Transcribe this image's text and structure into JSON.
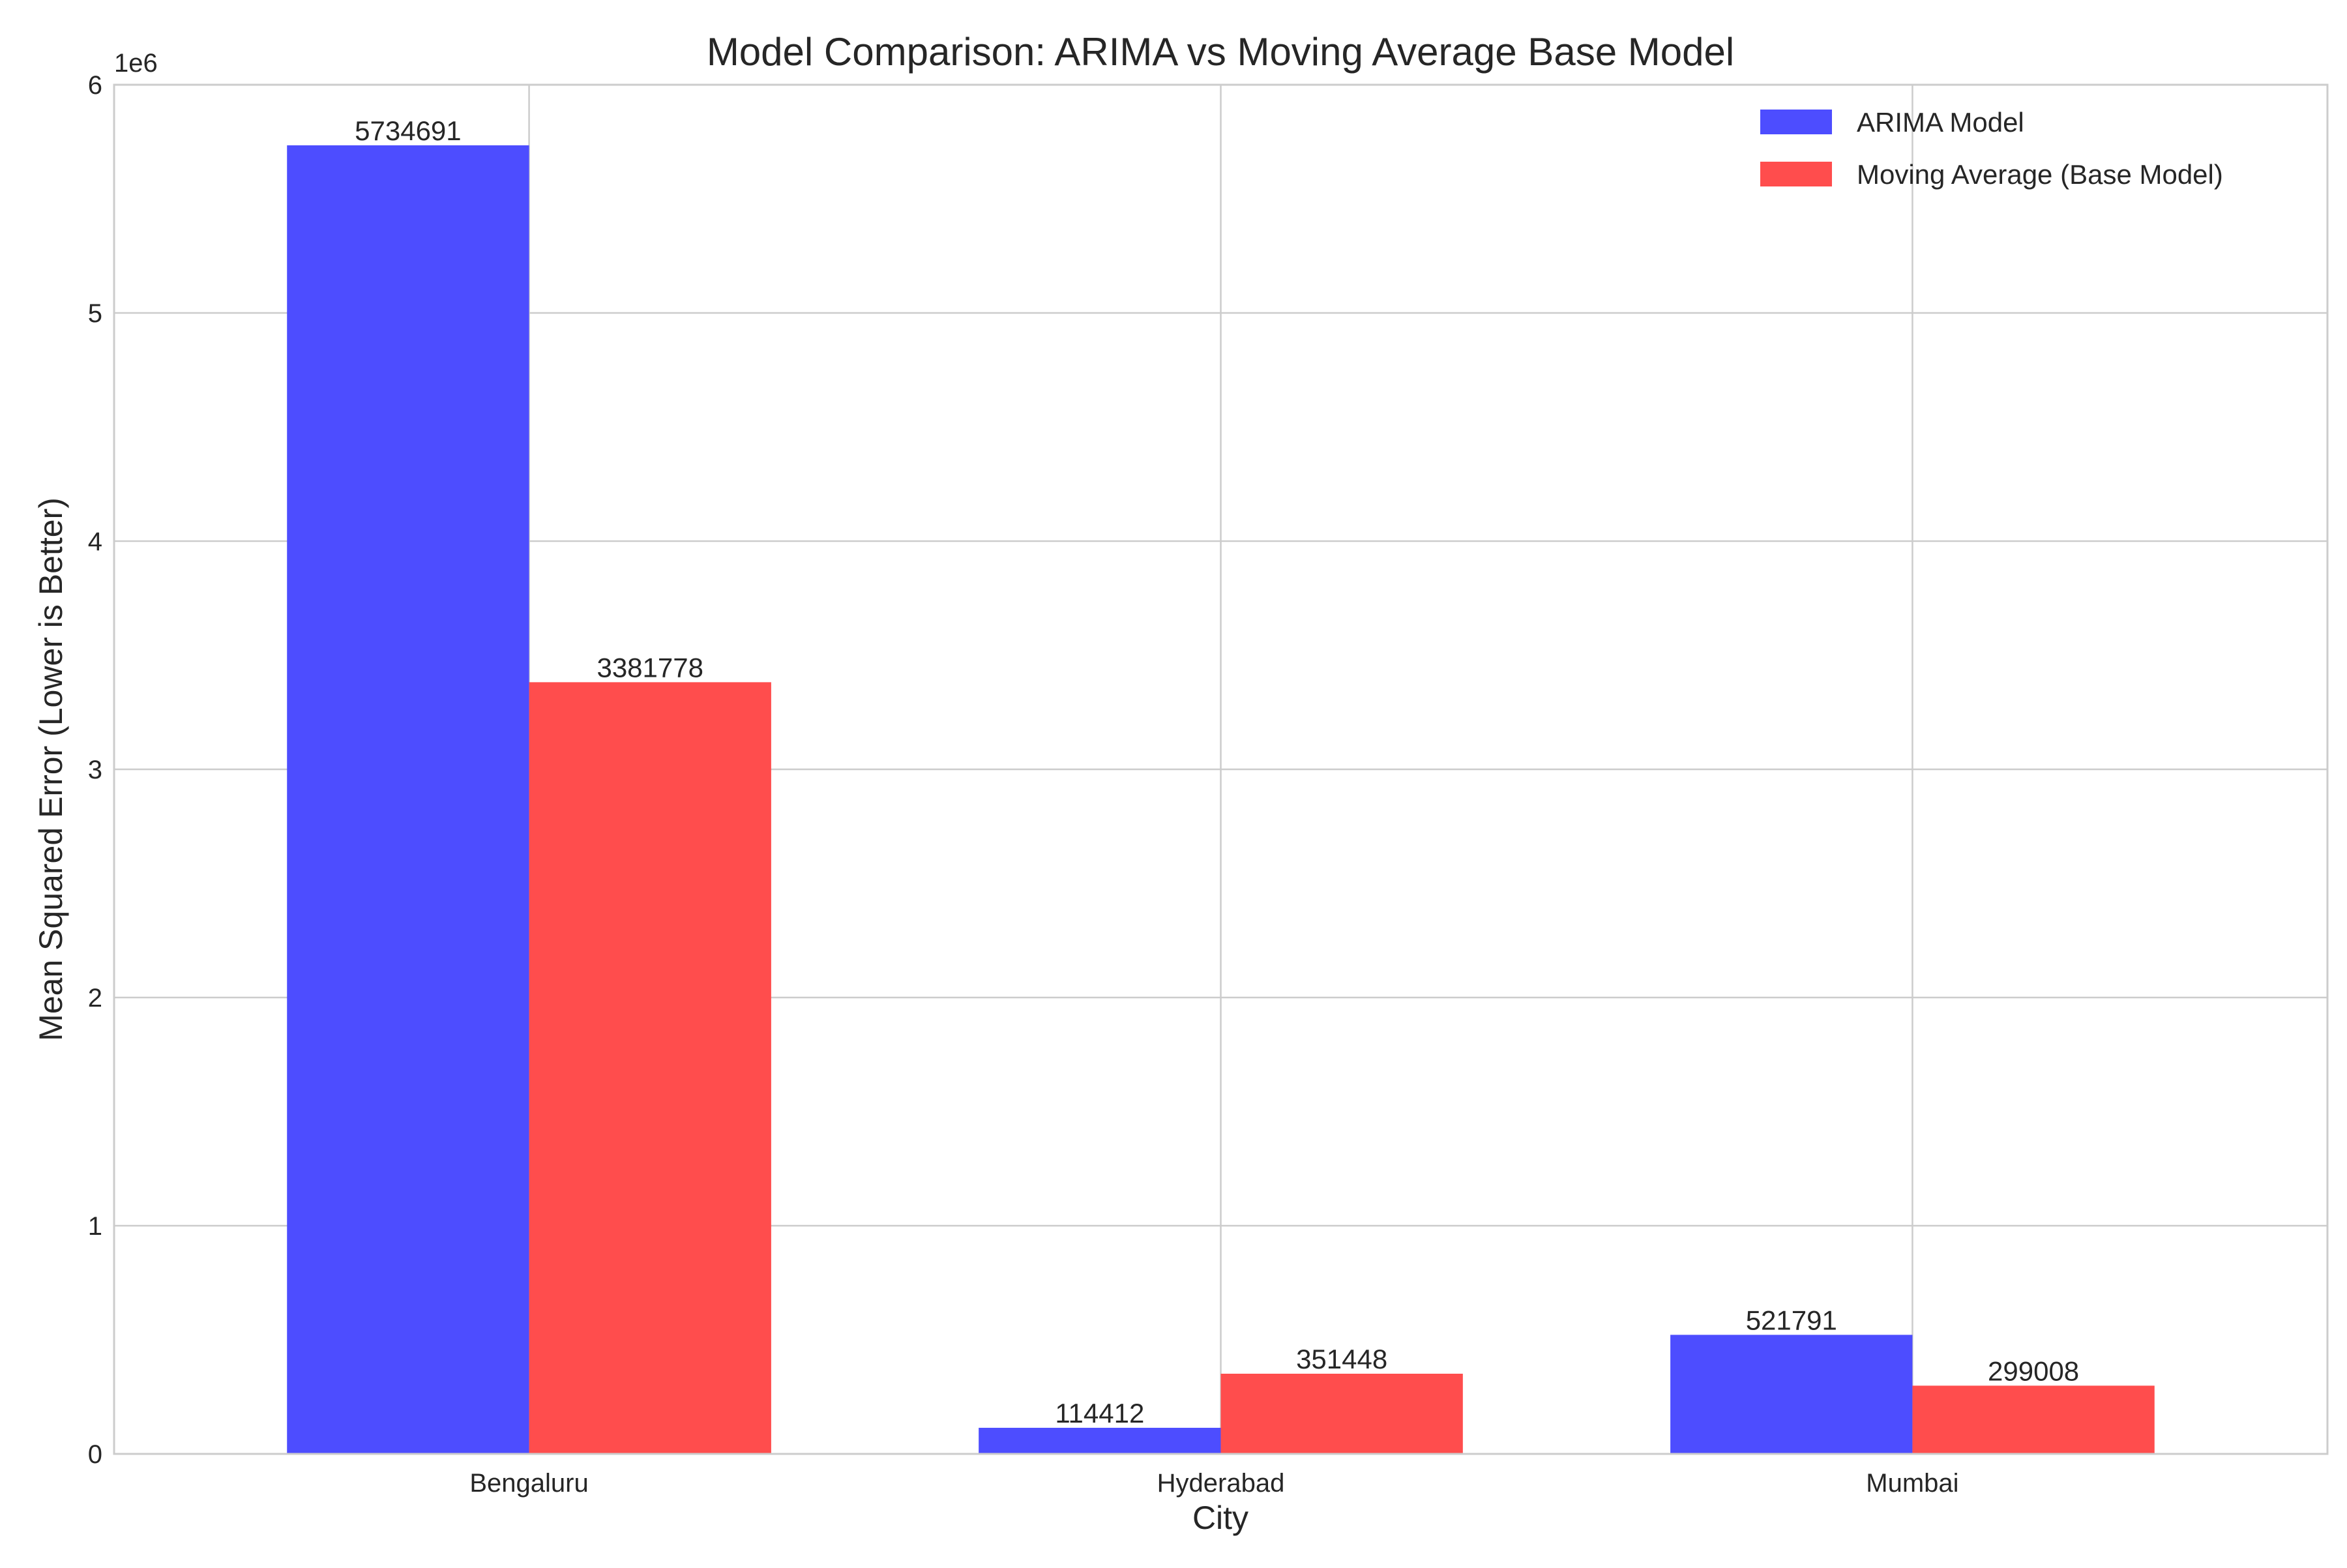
{
  "chart_data": {
    "type": "bar",
    "title": "Model Comparison: ARIMA vs Moving Average Base Model",
    "xlabel": "City",
    "ylabel": "Mean Squared Error (Lower is Better)",
    "categories": [
      "Bengaluru",
      "Hyderabad",
      "Mumbai"
    ],
    "series": [
      {
        "name": "ARIMA Model",
        "color": "#4d4dff",
        "values": [
          5734691,
          114412,
          521791
        ]
      },
      {
        "name": "Moving Average (Base Model)",
        "color": "#ff4d4d",
        "values": [
          3381778,
          351448,
          299008
        ]
      }
    ],
    "ylim": [
      0,
      6000000
    ],
    "yticks": [
      0,
      1000000,
      2000000,
      3000000,
      4000000,
      5000000,
      6000000
    ],
    "ytick_labels": [
      "0",
      "1",
      "2",
      "3",
      "4",
      "5",
      "6"
    ],
    "y_offset_text": "1e6",
    "data_labels": [
      [
        "5734691",
        "114412",
        "521791"
      ],
      [
        "3381778",
        "351448",
        "299008"
      ]
    ],
    "grid": true,
    "legend_position": "top-right"
  }
}
